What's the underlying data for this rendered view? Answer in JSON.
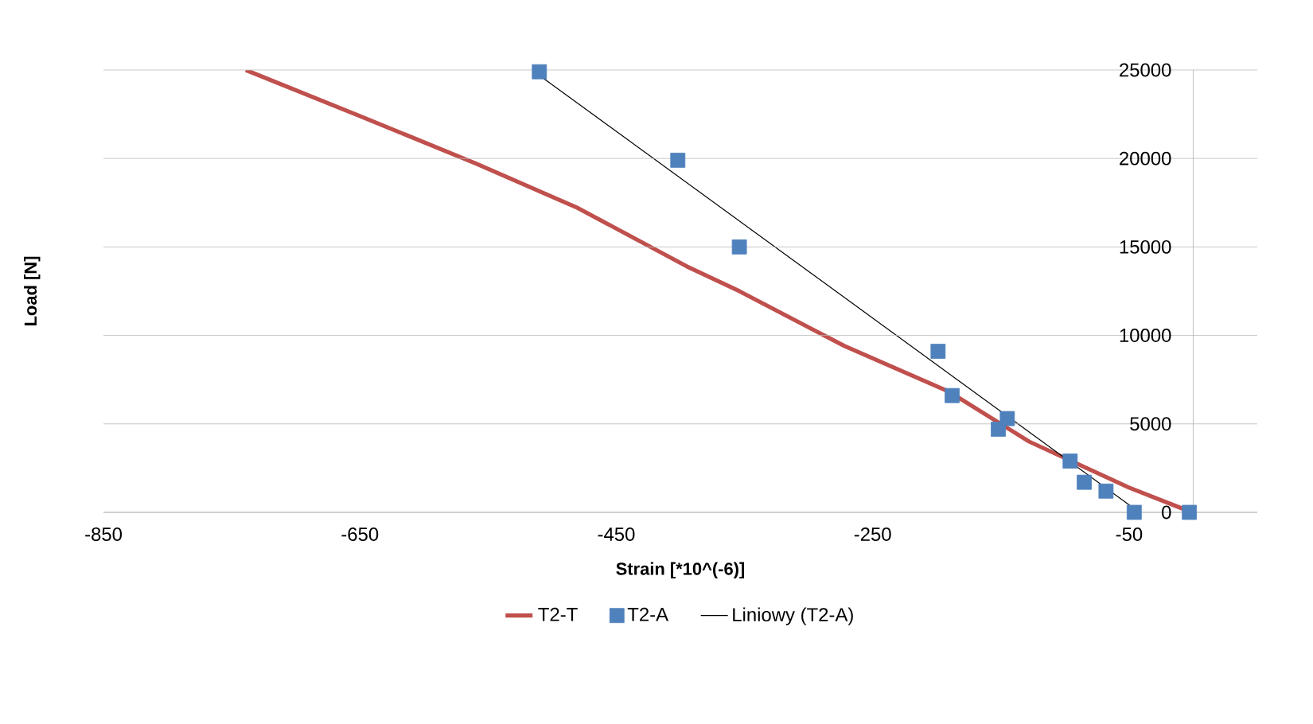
{
  "chart_data": {
    "type": "scatter",
    "xlabel": "Strain [*10^(-6)]",
    "ylabel": "Load [N]",
    "xlim": [
      -850,
      50
    ],
    "ylim": [
      0,
      25000
    ],
    "xticks": [
      -850,
      -650,
      -450,
      -250,
      -50
    ],
    "yticks": [
      0,
      5000,
      10000,
      15000,
      20000,
      25000
    ],
    "grid": "y",
    "legend": "bottom",
    "series": [
      {
        "name": "T2-T",
        "type": "line",
        "color": "#c0504d",
        "x": [
          -739,
          -650,
          -559,
          -480,
          -395,
          -354,
          -272,
          -190,
          -128,
          -50,
          -8
        ],
        "values": [
          25000,
          22400,
          19700,
          17200,
          13900,
          12500,
          9400,
          6800,
          4000,
          1400,
          200
        ]
      },
      {
        "name": "T2-A",
        "marker": "square",
        "color": "#4f81bd",
        "x": [
          -510,
          -402,
          -354,
          -199,
          -188,
          -152,
          -145,
          -96,
          -85,
          -68,
          -46,
          -3
        ],
        "values": [
          24900,
          19900,
          15000,
          9100,
          6600,
          4700,
          5300,
          2900,
          1700,
          1200,
          0,
          0
        ]
      },
      {
        "name": "Liniowy (T2-A)",
        "type": "line",
        "color": "#000000",
        "x": [
          -510,
          -42
        ],
        "values": [
          24700,
          0
        ]
      }
    ]
  }
}
